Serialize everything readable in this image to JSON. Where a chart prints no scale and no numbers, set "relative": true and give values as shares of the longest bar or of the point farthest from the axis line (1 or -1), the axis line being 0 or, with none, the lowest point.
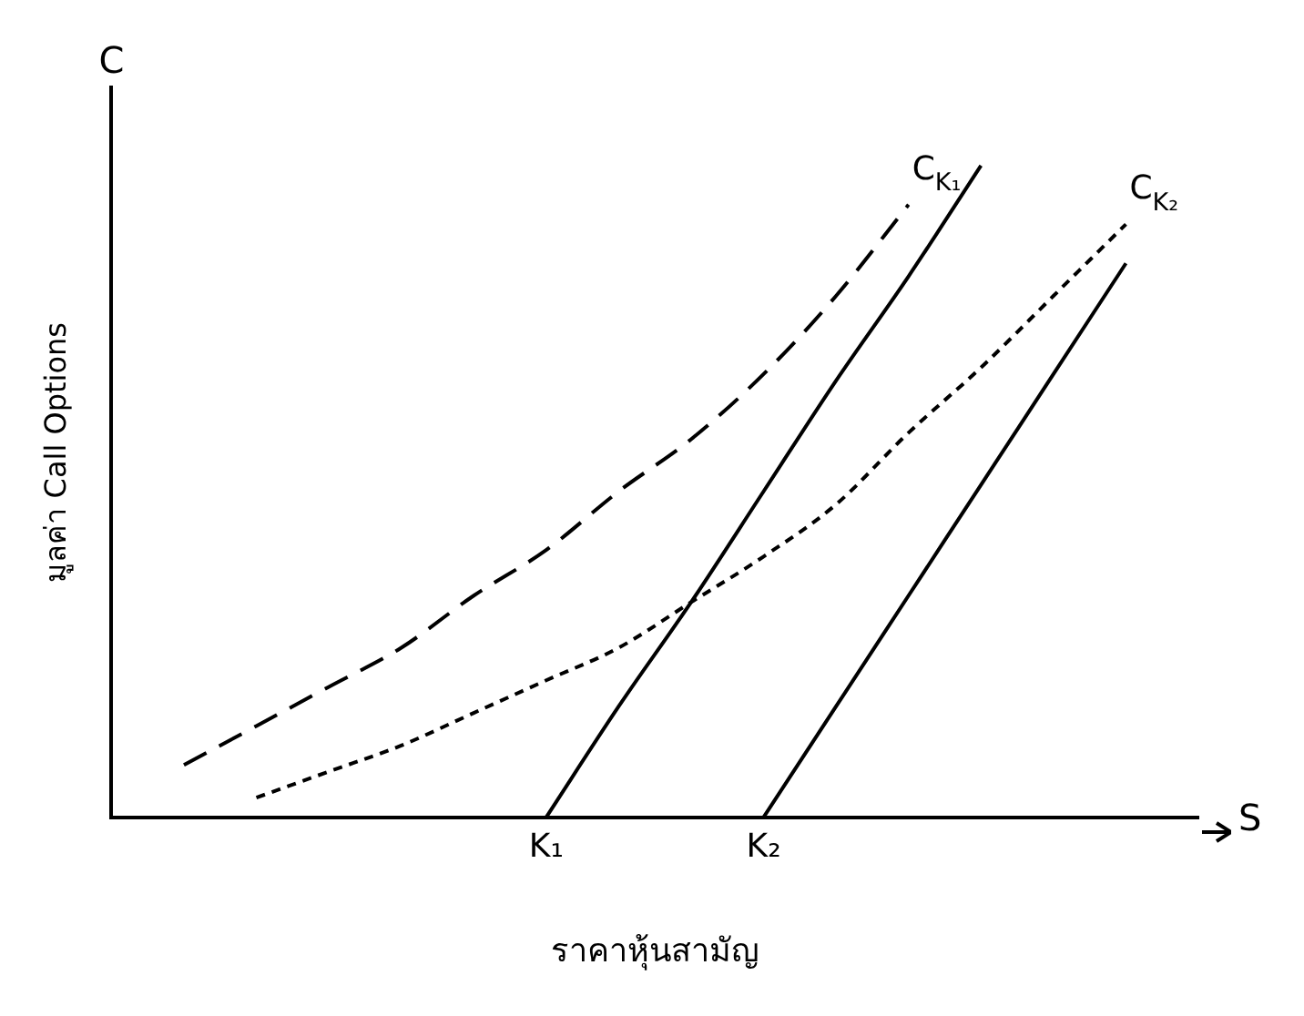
{
  "chart_data": {
    "type": "line",
    "relative": true,
    "xlabel": "ราคาหุ้นสามัญ",
    "ylabel": "มูลค่า Call Options",
    "annotations": [
      "C",
      "S"
    ],
    "categories": [
      null,
      null,
      null,
      null,
      null,
      null,
      "K₁",
      null,
      null,
      "K₂",
      null,
      null,
      null,
      null,
      null,
      null
    ],
    "series": [
      {
        "name": "C$_{K₁}$",
        "color": "#000000",
        "line_style": "dashed",
        "values": [
          null,
          0.08,
          0.14,
          0.2,
          0.26,
          0.34,
          0.41,
          0.5,
          0.58,
          0.68,
          0.8,
          0.94,
          null,
          null,
          null,
          null
        ]
      },
      {
        "name": "C$_{K₂}$",
        "color": "#000000",
        "line_style": "dotted",
        "values": [
          null,
          null,
          0.03,
          0.07,
          0.11,
          0.16,
          0.21,
          0.26,
          0.33,
          0.4,
          0.48,
          0.59,
          0.69,
          0.8,
          0.91,
          null
        ]
      },
      {
        "color": "#000000",
        "line_style": "solid",
        "values": [
          null,
          null,
          null,
          null,
          null,
          null,
          0,
          0.17,
          0.33,
          0.5,
          0.67,
          0.83,
          1,
          null,
          null,
          null
        ]
      },
      {
        "color": "#000000",
        "line_style": "solid",
        "values": [
          null,
          null,
          null,
          null,
          null,
          null,
          null,
          null,
          null,
          0,
          0.17,
          0.34,
          0.51,
          0.68,
          0.85,
          null
        ]
      }
    ],
    "marker": "none",
    "grid": false,
    "legend": false
  }
}
